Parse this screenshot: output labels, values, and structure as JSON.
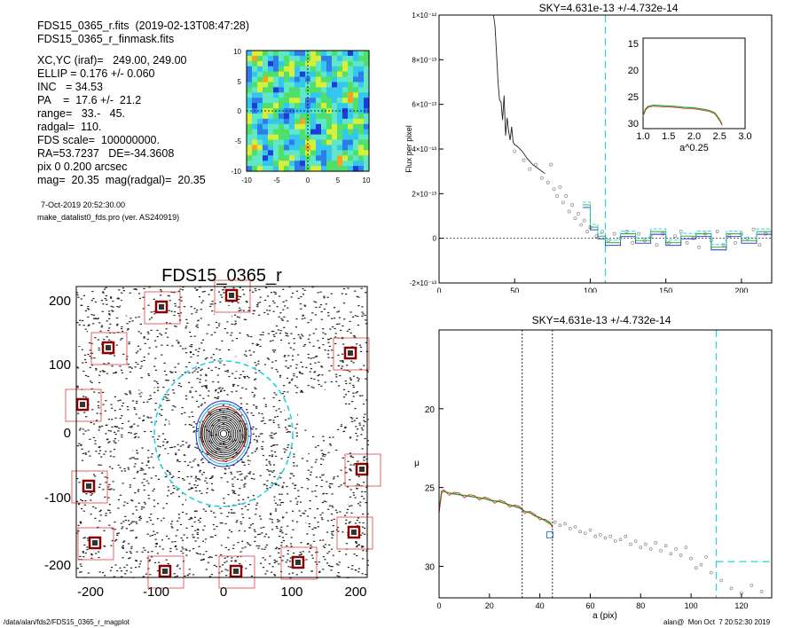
{
  "header": {
    "file_line": "FDS15_0365_r.fits  (2019-02-13T08:47:28)",
    "mask_line": "FDS15_0365_r_finmask.fits",
    "params": [
      "XC,YC (iraf)=   249.00, 249.00",
      "ELLIP = 0.176 +/- 0.060",
      "INC   = 34.53",
      "PA    =  17.6 +/-  21.2",
      "range=   33.-   45.",
      "radgal=  110.",
      "FDS scale=  100000000.",
      "RA=53.7237   DE=-34.3608",
      "pix 0 0.200 arcsec",
      "mag=  20.35  mag(radgal)=  20.35"
    ],
    "date": "7-Oct-2019 20:52:30.00",
    "program": "make_datalist0_fds.pro (ver. AS240919)"
  },
  "footer": {
    "path": "/data/alan/fds2/FDS15_0365_r_magplot",
    "stamp": "alan@  Mon Oct  7 20:52:30 2019"
  },
  "colors": {
    "contour_fill": [
      "#1f3dd6",
      "#2f7de8",
      "#34c6ef",
      "#5fe7c7",
      "#4ee06a",
      "#d6ef3a",
      "#f0a22a"
    ],
    "cyan_dash": "#22d3e6",
    "red_box": "#e04040",
    "model_green": "#22a022",
    "model_red": "#d22020",
    "sky_blue": "#1c2cd8"
  },
  "chart_data": [
    {
      "type": "heatmap",
      "name": "residual_map",
      "xlim": [
        -10,
        10
      ],
      "ylim": [
        -10,
        10
      ],
      "xticks": [
        "-10",
        "-5",
        "0",
        "5",
        "10"
      ],
      "yticks": [
        "10",
        "5",
        "0",
        "-5",
        "-10"
      ]
    },
    {
      "type": "image",
      "name": "galaxy_image",
      "title": "FDS15_0365_r",
      "xlim": [
        -225,
        225
      ],
      "ylim": [
        -225,
        225
      ],
      "xticks": [
        "-200",
        "-100",
        "0",
        "100",
        "200"
      ],
      "yticks": [
        "200",
        "100",
        "0",
        "-100",
        "-200"
      ]
    },
    {
      "type": "line",
      "name": "flux_profile",
      "title": "SKY=4.631e-13 +/-4.732e-14",
      "ylabel": "Flux per pixel",
      "xlim": [
        0,
        220
      ],
      "ylim": [
        -2e-13,
        1e-12
      ],
      "xticks": [
        "0",
        "50",
        "100",
        "150",
        "200"
      ],
      "yticks": [
        "1×10⁻¹²",
        "8×10⁻¹³",
        "6×10⁻¹³",
        "4×10⁻¹³",
        "2×10⁻¹³",
        "0",
        "-2×10⁻¹³"
      ],
      "radgal_line_x": 110,
      "steep_line": {
        "x": [
          36,
          37,
          38,
          39,
          40,
          41,
          42,
          43,
          44,
          45,
          46,
          47,
          48,
          49,
          50,
          52,
          55,
          58,
          62,
          66,
          70
        ],
        "y": [
          1e-12,
          9.5e-13,
          8.3e-13,
          7e-13,
          6.2e-13,
          6.1e-13,
          5.3e-13,
          6.4e-13,
          4.6e-13,
          5.4e-13,
          4.8e-13,
          4.4e-13,
          5e-13,
          4.3e-13,
          4.2e-13,
          4.1e-13,
          3.9e-13,
          3.6e-13,
          3.3e-13,
          3.1e-13,
          2.9e-13
        ]
      },
      "scatter_points": {
        "x": [
          50,
          56,
          60,
          64,
          68,
          72,
          74,
          76,
          78,
          80,
          82,
          84,
          86,
          88,
          90,
          92,
          94,
          96,
          98,
          100,
          104,
          108,
          112,
          116,
          120,
          124,
          128,
          132,
          136,
          140,
          144,
          148,
          152,
          156,
          160,
          164,
          168,
          172,
          176,
          180,
          184,
          188,
          192,
          196,
          200,
          204,
          208,
          212,
          216
        ],
        "y": [
          3.9e-13,
          3.5e-13,
          3.1e-13,
          3.3e-13,
          2.7e-13,
          2.5e-13,
          3.3e-13,
          2.2e-13,
          1.9e-13,
          2.3e-13,
          1.6e-13,
          1.9e-13,
          1.2e-13,
          1.5e-13,
          9e-14,
          1.1e-13,
          6e-14,
          8e-14,
          3e-14,
          5e-14,
          1e-14,
          3e-14,
          -1e-14,
          2e-14,
          0,
          3e-14,
          -2e-14,
          2e-14,
          -1e-14,
          1e-14,
          -3e-14,
          2e-14,
          -2e-14,
          1e-14,
          3e-14,
          -2e-14,
          0,
          -4e-14,
          2e-14,
          -1e-14,
          3e-14,
          -3e-14,
          1e-14,
          -2e-14,
          2e-14,
          0,
          4e-14,
          -3e-14,
          2e-14
        ]
      },
      "step_series": {
        "x": [
          95,
          100,
          105,
          110,
          120,
          130,
          140,
          150,
          160,
          170,
          180,
          190,
          200,
          210,
          220
        ],
        "y": [
          1.5e-13,
          5e-14,
          1e-14,
          -2e-14,
          2e-14,
          -1e-14,
          3e-14,
          -2e-14,
          1e-14,
          2e-14,
          -4e-14,
          2e-14,
          -1e-14,
          3e-14,
          1e-14
        ]
      },
      "inset": {
        "xlabel": "a^0.25",
        "xlim": [
          1,
          3
        ],
        "ylim": [
          14,
          31
        ],
        "xticks": [
          "1.0",
          "1.5",
          "2.0",
          "2.5",
          "3.0"
        ],
        "yticks": [
          "15",
          "20",
          "25",
          "30"
        ],
        "x": [
          1.0,
          1.05,
          1.1,
          1.2,
          1.4,
          1.6,
          1.8,
          2.0,
          2.2,
          2.3,
          2.4,
          2.45,
          2.5,
          2.55
        ],
        "y": [
          28.5,
          27.3,
          26.8,
          26.6,
          26.7,
          26.8,
          27.0,
          27.1,
          27.4,
          27.6,
          28.0,
          28.6,
          29.3,
          30.2
        ]
      }
    },
    {
      "type": "line",
      "name": "surface_brightness_profile",
      "title": "SKY=4.631e-13 +/-4.732e-14",
      "xlabel": "a (pix)",
      "ylabel": "μ",
      "xlim": [
        0,
        132
      ],
      "ylim": [
        32,
        15
      ],
      "xticks": [
        "0",
        "20",
        "40",
        "60",
        "80",
        "100",
        "120"
      ],
      "yticks": [
        "20",
        "25",
        "30"
      ],
      "range_lines_x": [
        33,
        45
      ],
      "radgal_line_x": 110,
      "sky_level_y": 29.7,
      "profile": {
        "x": [
          0,
          1,
          2,
          4,
          6,
          8,
          10,
          12,
          14,
          16,
          18,
          20,
          22,
          24,
          26,
          28,
          30,
          32,
          34,
          36,
          38,
          40,
          42,
          44,
          45
        ],
        "y": [
          26.5,
          25.3,
          25.25,
          25.35,
          25.4,
          25.45,
          25.5,
          25.55,
          25.6,
          25.65,
          25.7,
          25.8,
          25.85,
          25.9,
          26.0,
          26.1,
          26.2,
          26.3,
          26.5,
          26.6,
          26.8,
          26.9,
          27.1,
          27.3,
          27.4
        ]
      },
      "points": {
        "x": [
          46,
          48,
          50,
          52,
          54,
          56,
          58,
          60,
          62,
          64,
          66,
          68,
          70,
          72,
          74,
          76,
          78,
          80,
          82,
          84,
          86,
          88,
          90,
          92,
          94,
          96,
          98,
          100,
          102,
          104,
          106,
          108,
          112,
          116,
          120,
          124,
          128
        ],
        "y": [
          27.2,
          27.4,
          27.3,
          27.6,
          27.5,
          27.8,
          27.9,
          27.7,
          28.1,
          28.0,
          28.2,
          28.1,
          28.4,
          28.3,
          28.1,
          28.6,
          28.4,
          28.8,
          28.6,
          28.9,
          28.5,
          29.0,
          28.7,
          29.2,
          28.9,
          29.3,
          28.8,
          29.5,
          30.1,
          29.9,
          29.4,
          30.4,
          30.9,
          31.4,
          31.7,
          31.2,
          31.6
        ]
      },
      "marker_square": {
        "x": 44,
        "y": 28.0
      }
    }
  ]
}
